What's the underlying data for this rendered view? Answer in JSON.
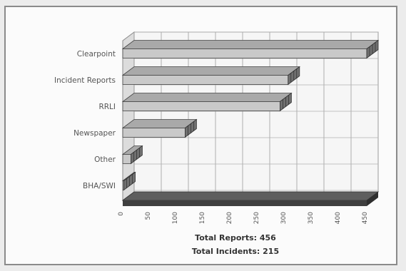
{
  "chart_data": {
    "type": "bar",
    "orientation": "horizontal",
    "style": "3d",
    "categories": [
      "Clearpoint",
      "Incident Reports",
      "RRLI",
      "Newspaper",
      "Other",
      "BHA/SWI"
    ],
    "values": [
      450,
      305,
      290,
      115,
      15,
      2
    ],
    "xlim": [
      0,
      450
    ],
    "xticks": [
      "0",
      "50",
      "100",
      "150",
      "200",
      "250",
      "300",
      "350",
      "400",
      "450"
    ],
    "grid": true,
    "legend": "none",
    "bar_color": "#c9c9c9",
    "floor_color": "#5e5e5e",
    "annotations": [
      "Total Reports: 456",
      "Total Incidents: 215"
    ]
  }
}
